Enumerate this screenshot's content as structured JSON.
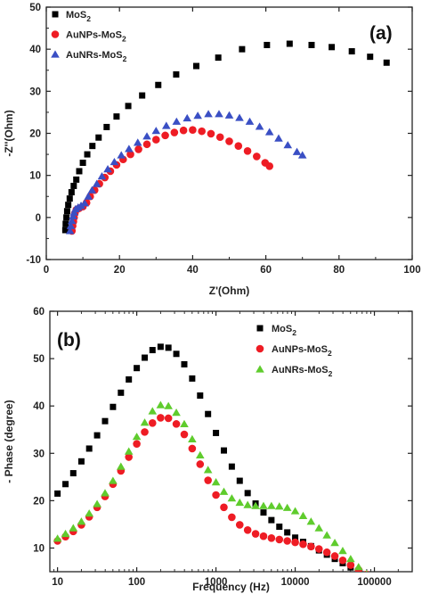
{
  "chart_data": [
    {
      "type": "scatter",
      "panel_label": "(a)",
      "xlabel": "Z'(Ohm)",
      "ylabel": "-Z''(Ohm)",
      "xlim": [
        0,
        100
      ],
      "ylim": [
        -10,
        50
      ],
      "xticks": [
        0,
        20,
        40,
        60,
        80,
        100
      ],
      "yticks": [
        -10,
        0,
        10,
        20,
        30,
        40,
        50
      ],
      "xscale": "linear",
      "grid": false,
      "legend_position": "top-left",
      "series": [
        {
          "name": "MoS",
          "name_sub": "2",
          "color": "#000000",
          "marker": "square",
          "x": [
            5.2,
            5.3,
            5.5,
            5.7,
            6.0,
            6.4,
            6.9,
            7.5,
            8.2,
            9.0,
            10.0,
            11.2,
            12.6,
            14.3,
            16.5,
            19.2,
            22.4,
            26.2,
            30.6,
            35.5,
            41.0,
            47.0,
            53.5,
            60.3,
            66.5,
            72.5,
            78.0,
            83.5,
            88.5,
            93.0
          ],
          "y": [
            -3.0,
            -1.5,
            0.0,
            1.5,
            3.0,
            4.5,
            6.0,
            7.5,
            9.0,
            11.0,
            13.0,
            15.0,
            17.0,
            19.0,
            21.5,
            24.0,
            26.5,
            29.0,
            31.5,
            34.0,
            36.0,
            38.0,
            40.0,
            41.0,
            41.3,
            41.0,
            40.5,
            39.5,
            38.2,
            36.8
          ]
        },
        {
          "name": "AuNPs-MoS",
          "name_sub": "2",
          "color": "#ee1c24",
          "marker": "circle",
          "x": [
            7.0,
            7.2,
            7.4,
            7.6,
            7.8,
            8.2,
            9.0,
            10.0,
            11.0,
            12.0,
            13.2,
            14.5,
            16.0,
            17.5,
            19.2,
            21.0,
            23.0,
            25.2,
            27.5,
            30.0,
            32.5,
            35.0,
            37.5,
            40.0,
            42.5,
            45.0,
            47.5,
            50.0,
            52.5,
            55.0,
            57.5,
            59.8,
            61.0
          ],
          "y": [
            -3.2,
            -2.0,
            -1.0,
            0.0,
            1.0,
            1.8,
            2.2,
            2.6,
            3.5,
            5.0,
            6.5,
            8.0,
            9.5,
            11.0,
            12.5,
            13.8,
            15.0,
            16.2,
            17.4,
            18.5,
            19.5,
            20.2,
            20.7,
            20.8,
            20.5,
            19.9,
            19.1,
            18.1,
            17.0,
            15.8,
            14.5,
            13.0,
            12.2
          ]
        },
        {
          "name": "AuNRs-MoS",
          "name_sub": "2",
          "color": "#3a4fc4",
          "marker": "triangle",
          "x": [
            6.5,
            6.7,
            7.0,
            7.3,
            7.6,
            8.0,
            8.7,
            9.5,
            10.5,
            11.5,
            12.5,
            13.8,
            15.2,
            16.8,
            18.6,
            20.5,
            22.6,
            25.0,
            27.5,
            30.0,
            32.8,
            35.6,
            38.5,
            41.4,
            44.3,
            47.2,
            50.0,
            52.8,
            55.6,
            58.3,
            61.0,
            63.5,
            66.0,
            68.5,
            70.0
          ],
          "y": [
            -3.2,
            -2.0,
            -0.8,
            0.3,
            1.2,
            2.0,
            2.4,
            2.8,
            3.4,
            5.0,
            6.5,
            8.0,
            9.8,
            11.5,
            13.2,
            14.8,
            16.3,
            17.8,
            19.3,
            20.6,
            21.8,
            22.8,
            23.6,
            24.2,
            24.6,
            24.6,
            24.3,
            23.7,
            22.8,
            21.6,
            20.3,
            18.8,
            17.2,
            15.6,
            14.8
          ]
        }
      ]
    },
    {
      "type": "scatter",
      "panel_label": "(b)",
      "xlabel": "Frequency (Hz)",
      "ylabel": "- Phase (degree)",
      "xlim": [
        8,
        300000
      ],
      "ylim": [
        5,
        60
      ],
      "xticks": [
        10,
        100,
        1000,
        10000,
        100000
      ],
      "xticklabels": [
        "10",
        "100",
        "1000",
        "10000",
        "100000"
      ],
      "yticks": [
        10,
        20,
        30,
        40,
        50,
        60
      ],
      "xscale": "log",
      "grid": false,
      "legend_position": "top-right",
      "series": [
        {
          "name": "MoS",
          "name_sub": "2",
          "color": "#000000",
          "marker": "square",
          "x": [
            10,
            12.6,
            15.8,
            20,
            25.1,
            31.6,
            39.8,
            50.1,
            63.1,
            79.4,
            100,
            126,
            158,
            200,
            251,
            316,
            398,
            501,
            631,
            794,
            1000,
            1259,
            1585,
            1995,
            2512,
            3162,
            3981,
            5012,
            6310,
            7943,
            10000,
            12589,
            15849,
            19953,
            25119,
            31623,
            39811,
            50119,
            63096,
            79433,
            100000
          ],
          "y": [
            21.5,
            23.5,
            25.8,
            28.3,
            31.0,
            33.8,
            36.8,
            39.8,
            42.8,
            45.6,
            48.0,
            50.2,
            51.8,
            52.5,
            52.3,
            51.0,
            48.8,
            45.8,
            42.2,
            38.3,
            34.3,
            30.6,
            27.2,
            24.2,
            21.6,
            19.4,
            17.5,
            15.9,
            14.5,
            13.3,
            12.2,
            11.3,
            10.4,
            9.5,
            8.6,
            7.7,
            6.8,
            5.9,
            5.0,
            4.2,
            3.4
          ]
        },
        {
          "name": "AuNPs-MoS",
          "name_sub": "2",
          "color": "#ee1c24",
          "marker": "circle",
          "x": [
            10,
            12.6,
            15.8,
            20,
            25.1,
            31.6,
            39.8,
            50.1,
            63.1,
            79.4,
            100,
            126,
            158,
            200,
            251,
            316,
            398,
            501,
            631,
            794,
            1000,
            1259,
            1585,
            1995,
            2512,
            3162,
            3981,
            5012,
            6310,
            7943,
            10000,
            12589,
            15849,
            19953,
            25119,
            31623,
            39811,
            50119,
            63096,
            79433,
            100000
          ],
          "y": [
            11.5,
            12.4,
            13.5,
            14.9,
            16.6,
            18.6,
            20.9,
            23.5,
            26.3,
            29.2,
            32.0,
            34.5,
            36.4,
            37.5,
            37.4,
            36.2,
            34.0,
            31.0,
            27.7,
            24.3,
            21.2,
            18.6,
            16.5,
            14.9,
            13.8,
            13.0,
            12.5,
            12.1,
            11.8,
            11.5,
            11.2,
            10.8,
            10.3,
            9.8,
            9.1,
            8.3,
            7.4,
            6.4,
            5.4,
            4.4,
            3.6
          ]
        },
        {
          "name": "AuNRs-MoS",
          "name_sub": "2",
          "color": "#5fcc2d",
          "marker": "triangle",
          "x": [
            10,
            12.6,
            15.8,
            20,
            25.1,
            31.6,
            39.8,
            50.1,
            63.1,
            79.4,
            100,
            126,
            158,
            200,
            251,
            316,
            398,
            501,
            631,
            794,
            1000,
            1259,
            1585,
            1995,
            2512,
            3162,
            3981,
            5012,
            6310,
            7943,
            10000,
            12589,
            15849,
            19953,
            25119,
            31623,
            39811,
            50119,
            63096,
            79433,
            100000
          ],
          "y": [
            12.0,
            13.0,
            14.2,
            15.6,
            17.3,
            19.3,
            21.6,
            24.2,
            27.2,
            30.4,
            33.5,
            36.5,
            38.9,
            40.2,
            40.0,
            38.6,
            36.2,
            33.0,
            29.6,
            26.5,
            23.9,
            21.9,
            20.5,
            19.6,
            19.1,
            18.9,
            18.9,
            18.9,
            18.8,
            18.5,
            17.8,
            16.8,
            15.6,
            14.2,
            12.7,
            11.1,
            9.4,
            7.7,
            6.0,
            4.5,
            3.2
          ]
        }
      ]
    }
  ]
}
